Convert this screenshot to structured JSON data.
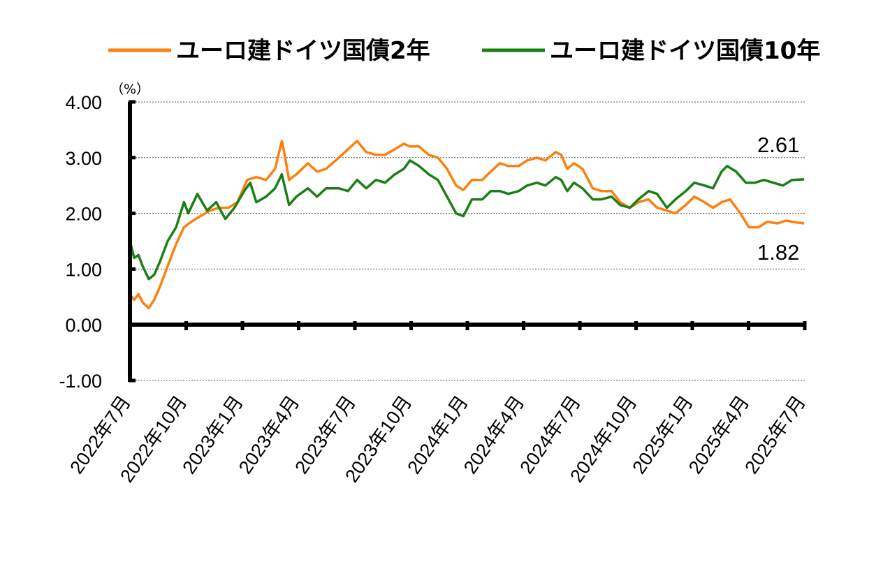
{
  "chart_data": {
    "type": "line",
    "unit_label": "（%）",
    "ylim": [
      -1.0,
      4.0
    ],
    "y_ticks": [
      "4.00",
      "3.00",
      "2.00",
      "1.00",
      "0.00",
      "-1.00"
    ],
    "y_tick_values": [
      4,
      3,
      2,
      1,
      0,
      -1
    ],
    "negative_tick_color": "#ff0000",
    "x_ticks": [
      "2022年7月",
      "2022年10月",
      "2023年1月",
      "2023年4月",
      "2023年7月",
      "2023年10月",
      "2024年1月",
      "2024年4月",
      "2024年7月",
      "2024年10月",
      "2025年1月",
      "2025年4月",
      "2025年7月"
    ],
    "x_range": [
      "2022-07",
      "2025-07"
    ],
    "grid": "horizontal dashed",
    "legend_position": "top",
    "series": [
      {
        "name": "ユーロ建ドイツ国債2年",
        "color": "#ff7f0e",
        "last_value_label": "1.82",
        "points": [
          [
            "2022-07-01",
            0.55
          ],
          [
            "2022-07-08",
            0.45
          ],
          [
            "2022-07-15",
            0.55
          ],
          [
            "2022-07-22",
            0.4
          ],
          [
            "2022-08-01",
            0.3
          ],
          [
            "2022-08-10",
            0.45
          ],
          [
            "2022-08-20",
            0.7
          ],
          [
            "2022-09-01",
            1.05
          ],
          [
            "2022-09-15",
            1.45
          ],
          [
            "2022-09-28",
            1.75
          ],
          [
            "2022-10-10",
            1.85
          ],
          [
            "2022-10-25",
            1.95
          ],
          [
            "2022-11-10",
            2.05
          ],
          [
            "2022-11-25",
            2.1
          ],
          [
            "2022-12-10",
            2.1
          ],
          [
            "2022-12-25",
            2.2
          ],
          [
            "2023-01-10",
            2.6
          ],
          [
            "2023-01-25",
            2.65
          ],
          [
            "2023-02-10",
            2.6
          ],
          [
            "2023-02-25",
            2.8
          ],
          [
            "2023-03-08",
            3.3
          ],
          [
            "2023-03-12",
            3.1
          ],
          [
            "2023-03-20",
            2.6
          ],
          [
            "2023-04-01",
            2.7
          ],
          [
            "2023-04-20",
            2.9
          ],
          [
            "2023-05-05",
            2.75
          ],
          [
            "2023-05-20",
            2.8
          ],
          [
            "2023-06-10",
            3.0
          ],
          [
            "2023-06-25",
            3.15
          ],
          [
            "2023-07-10",
            3.3
          ],
          [
            "2023-07-25",
            3.1
          ],
          [
            "2023-08-10",
            3.05
          ],
          [
            "2023-08-25",
            3.05
          ],
          [
            "2023-09-10",
            3.15
          ],
          [
            "2023-09-25",
            3.25
          ],
          [
            "2023-10-05",
            3.2
          ],
          [
            "2023-10-20",
            3.2
          ],
          [
            "2023-11-05",
            3.05
          ],
          [
            "2023-11-20",
            3.0
          ],
          [
            "2023-12-05",
            2.8
          ],
          [
            "2023-12-20",
            2.5
          ],
          [
            "2024-01-01",
            2.42
          ],
          [
            "2024-01-15",
            2.6
          ],
          [
            "2024-02-01",
            2.6
          ],
          [
            "2024-02-15",
            2.75
          ],
          [
            "2024-03-01",
            2.9
          ],
          [
            "2024-03-15",
            2.85
          ],
          [
            "2024-04-01",
            2.85
          ],
          [
            "2024-04-15",
            2.95
          ],
          [
            "2024-05-01",
            3.0
          ],
          [
            "2024-05-15",
            2.95
          ],
          [
            "2024-06-01",
            3.1
          ],
          [
            "2024-06-10",
            3.05
          ],
          [
            "2024-06-20",
            2.8
          ],
          [
            "2024-07-01",
            2.9
          ],
          [
            "2024-07-15",
            2.8
          ],
          [
            "2024-08-01",
            2.45
          ],
          [
            "2024-08-15",
            2.4
          ],
          [
            "2024-09-01",
            2.4
          ],
          [
            "2024-09-15",
            2.2
          ],
          [
            "2024-10-01",
            2.1
          ],
          [
            "2024-10-15",
            2.2
          ],
          [
            "2024-11-01",
            2.25
          ],
          [
            "2024-11-15",
            2.1
          ],
          [
            "2024-12-01",
            2.05
          ],
          [
            "2024-12-15",
            2.0
          ],
          [
            "2025-01-01",
            2.15
          ],
          [
            "2025-01-15",
            2.3
          ],
          [
            "2025-02-01",
            2.2
          ],
          [
            "2025-02-15",
            2.1
          ],
          [
            "2025-03-01",
            2.2
          ],
          [
            "2025-03-15",
            2.25
          ],
          [
            "2025-04-01",
            2.0
          ],
          [
            "2025-04-15",
            1.75
          ],
          [
            "2025-05-01",
            1.75
          ],
          [
            "2025-05-15",
            1.85
          ],
          [
            "2025-06-01",
            1.82
          ],
          [
            "2025-06-15",
            1.87
          ],
          [
            "2025-07-01",
            1.84
          ],
          [
            "2025-07-15",
            1.82
          ]
        ]
      },
      {
        "name": "ユーロ建ドイツ国債10年",
        "color": "#1a7f14",
        "last_value_label": "2.61",
        "points": [
          [
            "2022-07-01",
            1.5
          ],
          [
            "2022-07-08",
            1.2
          ],
          [
            "2022-07-15",
            1.25
          ],
          [
            "2022-07-22",
            1.05
          ],
          [
            "2022-08-01",
            0.82
          ],
          [
            "2022-08-10",
            0.9
          ],
          [
            "2022-08-20",
            1.15
          ],
          [
            "2022-09-01",
            1.5
          ],
          [
            "2022-09-15",
            1.75
          ],
          [
            "2022-09-28",
            2.2
          ],
          [
            "2022-10-05",
            2.0
          ],
          [
            "2022-10-20",
            2.35
          ],
          [
            "2022-11-05",
            2.05
          ],
          [
            "2022-11-20",
            2.2
          ],
          [
            "2022-12-05",
            1.9
          ],
          [
            "2022-12-20",
            2.1
          ],
          [
            "2023-01-05",
            2.4
          ],
          [
            "2023-01-15",
            2.55
          ],
          [
            "2023-01-25",
            2.2
          ],
          [
            "2023-02-10",
            2.3
          ],
          [
            "2023-02-25",
            2.45
          ],
          [
            "2023-03-08",
            2.7
          ],
          [
            "2023-03-20",
            2.15
          ],
          [
            "2023-04-01",
            2.3
          ],
          [
            "2023-04-20",
            2.45
          ],
          [
            "2023-05-05",
            2.3
          ],
          [
            "2023-05-20",
            2.45
          ],
          [
            "2023-06-10",
            2.45
          ],
          [
            "2023-06-25",
            2.4
          ],
          [
            "2023-07-10",
            2.6
          ],
          [
            "2023-07-25",
            2.45
          ],
          [
            "2023-08-10",
            2.6
          ],
          [
            "2023-08-25",
            2.55
          ],
          [
            "2023-09-10",
            2.7
          ],
          [
            "2023-09-25",
            2.8
          ],
          [
            "2023-10-05",
            2.95
          ],
          [
            "2023-10-20",
            2.85
          ],
          [
            "2023-11-05",
            2.7
          ],
          [
            "2023-11-20",
            2.6
          ],
          [
            "2023-12-05",
            2.3
          ],
          [
            "2023-12-20",
            2.0
          ],
          [
            "2024-01-01",
            1.95
          ],
          [
            "2024-01-15",
            2.25
          ],
          [
            "2024-02-01",
            2.25
          ],
          [
            "2024-02-15",
            2.4
          ],
          [
            "2024-03-01",
            2.4
          ],
          [
            "2024-03-15",
            2.35
          ],
          [
            "2024-04-01",
            2.4
          ],
          [
            "2024-04-15",
            2.5
          ],
          [
            "2024-05-01",
            2.55
          ],
          [
            "2024-05-15",
            2.5
          ],
          [
            "2024-06-01",
            2.65
          ],
          [
            "2024-06-10",
            2.6
          ],
          [
            "2024-06-20",
            2.4
          ],
          [
            "2024-07-01",
            2.55
          ],
          [
            "2024-07-15",
            2.45
          ],
          [
            "2024-08-01",
            2.25
          ],
          [
            "2024-08-15",
            2.25
          ],
          [
            "2024-09-01",
            2.3
          ],
          [
            "2024-09-15",
            2.15
          ],
          [
            "2024-10-01",
            2.1
          ],
          [
            "2024-10-15",
            2.25
          ],
          [
            "2024-11-01",
            2.4
          ],
          [
            "2024-11-15",
            2.35
          ],
          [
            "2024-12-01",
            2.1
          ],
          [
            "2024-12-15",
            2.25
          ],
          [
            "2025-01-01",
            2.4
          ],
          [
            "2025-01-15",
            2.55
          ],
          [
            "2025-02-01",
            2.5
          ],
          [
            "2025-02-15",
            2.45
          ],
          [
            "2025-03-01",
            2.75
          ],
          [
            "2025-03-10",
            2.85
          ],
          [
            "2025-03-25",
            2.75
          ],
          [
            "2025-04-10",
            2.55
          ],
          [
            "2025-04-25",
            2.55
          ],
          [
            "2025-05-10",
            2.6
          ],
          [
            "2025-05-25",
            2.55
          ],
          [
            "2025-06-10",
            2.5
          ],
          [
            "2025-06-25",
            2.6
          ],
          [
            "2025-07-15",
            2.61
          ]
        ]
      }
    ]
  }
}
